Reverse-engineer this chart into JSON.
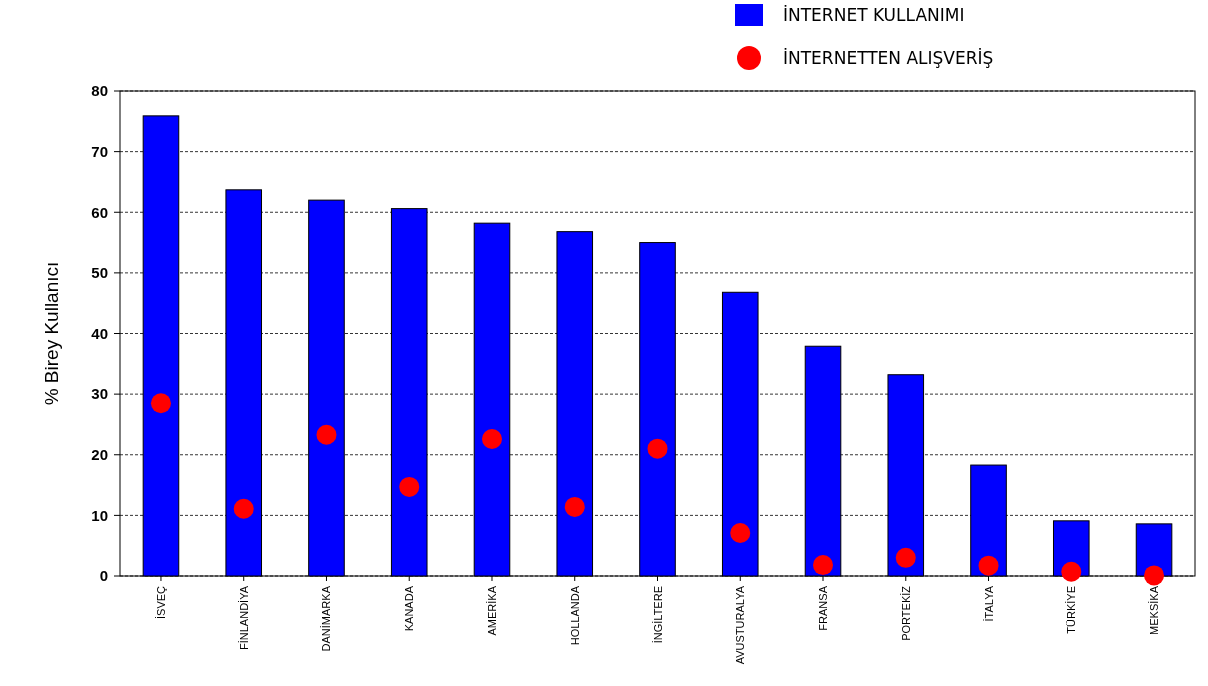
{
  "chart_data": {
    "type": "bar",
    "ylabel": "% Birey Kullanıcı",
    "categories": [
      "İSVEÇ",
      "FİNLANDİYA",
      "DANİMARKA",
      "KANADA",
      "AMERİKA",
      "HOLLANDA",
      "İNGİLTERE",
      "AVUSTURALYA",
      "FRANSA",
      "PORTEKİZ",
      "İTALYA",
      "TÜRKİYE",
      "MEKSİKA"
    ],
    "series": [
      {
        "name": "İNTERNET KULLANIMI",
        "color": "#0000ff",
        "values": [
          75.9,
          63.7,
          62.0,
          60.6,
          58.2,
          56.8,
          55.0,
          46.8,
          37.9,
          33.2,
          18.3,
          9.1,
          8.6
        ]
      },
      {
        "name": "İNTERNETTEN ALIŞVERİŞ",
        "type": "scatter",
        "color": "#ff0000",
        "marker": "circle",
        "values": [
          28.5,
          11.1,
          23.3,
          14.7,
          22.6,
          11.4,
          21.0,
          7.1,
          1.8,
          3.0,
          1.7,
          0.7,
          0.1
        ]
      }
    ],
    "ylim": [
      0,
      80
    ],
    "yticks": [
      0,
      10,
      20,
      30,
      40,
      50,
      60,
      70,
      80
    ],
    "grid": "y",
    "legend": "top right"
  }
}
